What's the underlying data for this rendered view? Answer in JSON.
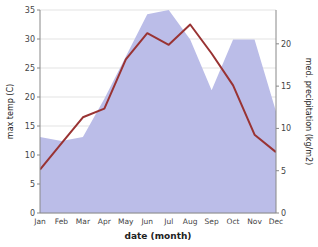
{
  "chart_data": {
    "type": "line",
    "categories": [
      "Jan",
      "Feb",
      "Mar",
      "Apr",
      "May",
      "Jun",
      "Jul",
      "Aug",
      "Sep",
      "Oct",
      "Nov",
      "Dec"
    ],
    "series": [
      {
        "type": "area",
        "axis": "y2",
        "color": "#bbbde8",
        "values": [
          9.0,
          8.5,
          9.0,
          13.5,
          18.5,
          23.5,
          24.0,
          20.5,
          14.5,
          20.5,
          20.5,
          12.0
        ]
      },
      {
        "type": "line",
        "color": "#993333",
        "values": [
          7.5,
          12.0,
          16.5,
          18.0,
          26.5,
          31.0,
          29.0,
          32.5,
          27.5,
          22.0,
          13.5,
          10.5
        ]
      }
    ],
    "xlabel": "date (month)",
    "ylabel": "max temp (C)",
    "y2label": "med. precipitation (kg/m2)",
    "ylim": [
      0,
      35
    ],
    "yticks": [
      0,
      5,
      10,
      15,
      20,
      25,
      30,
      35
    ],
    "y2lim": [
      0,
      24
    ],
    "y2ticks": [
      0,
      5,
      10,
      15,
      20
    ],
    "grid": true
  }
}
